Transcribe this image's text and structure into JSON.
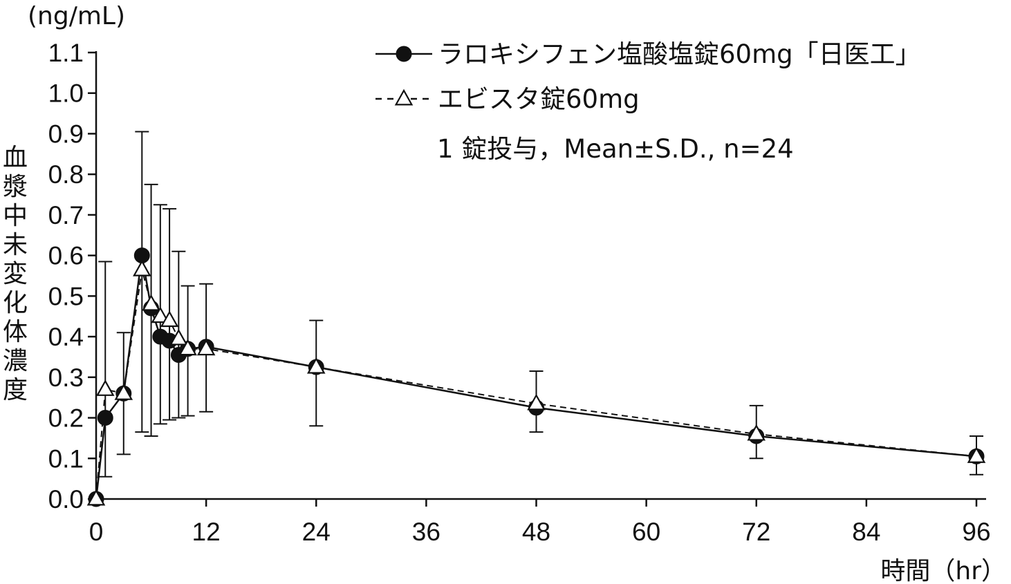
{
  "chart_data": {
    "type": "line",
    "ylabel_unit": "(ng/mL)",
    "ylabel": "血漿中未変化体濃度",
    "xlabel": "時間（hr）",
    "xlim": [
      0,
      96
    ],
    "ylim": [
      0,
      1.1
    ],
    "xticks": [
      0,
      12,
      24,
      36,
      48,
      60,
      72,
      84,
      96
    ],
    "yticks": [
      0.0,
      0.1,
      0.2,
      0.3,
      0.4,
      0.5,
      0.6,
      0.7,
      0.8,
      0.9,
      1.0,
      1.1
    ],
    "ytick_labels": [
      "0.0",
      "0.1",
      "0.2",
      "0.3",
      "0.4",
      "0.5",
      "0.6",
      "0.7",
      "0.8",
      "0.9",
      "1.0",
      "1.1"
    ],
    "annotation": "1 錠投与，Mean±S.D., n=24",
    "legend_position": "top-right",
    "series": [
      {
        "name": "ラロキシフェン塩酸塩錠60mg「日医工」",
        "marker": "filled-circle",
        "line": "solid",
        "x": [
          0,
          1,
          3,
          5,
          6,
          7,
          8,
          9,
          10,
          12,
          24,
          48,
          72,
          96
        ],
        "y": [
          0.0,
          0.2,
          0.26,
          0.6,
          0.47,
          0.4,
          0.39,
          0.355,
          0.37,
          0.375,
          0.325,
          0.225,
          0.155,
          0.105
        ],
        "err_hi": [
          null,
          0.585,
          null,
          0.905,
          0.775,
          0.725,
          0.715,
          0.61,
          0.525,
          0.53,
          0.44,
          0.315,
          0.23,
          0.155
        ],
        "err_lo": [
          null,
          0.055,
          null,
          0.165,
          0.155,
          0.185,
          0.195,
          0.2,
          0.205,
          0.215,
          0.18,
          0.165,
          0.1,
          0.06
        ]
      },
      {
        "name": "エビスタ錠60mg",
        "marker": "open-triangle",
        "line": "dashed",
        "x": [
          0,
          1,
          3,
          5,
          6,
          7,
          8,
          9,
          10,
          12,
          24,
          48,
          72,
          96
        ],
        "y": [
          0.0,
          0.27,
          0.26,
          0.565,
          0.48,
          0.45,
          0.44,
          0.395,
          0.37,
          0.37,
          0.325,
          0.235,
          0.16,
          0.105
        ],
        "err_hi": [
          null,
          null,
          0.41,
          null,
          null,
          null,
          null,
          null,
          null,
          null,
          null,
          null,
          null,
          null
        ],
        "err_lo": [
          null,
          null,
          0.11,
          null,
          null,
          null,
          null,
          null,
          null,
          null,
          null,
          null,
          null,
          null
        ]
      }
    ]
  }
}
